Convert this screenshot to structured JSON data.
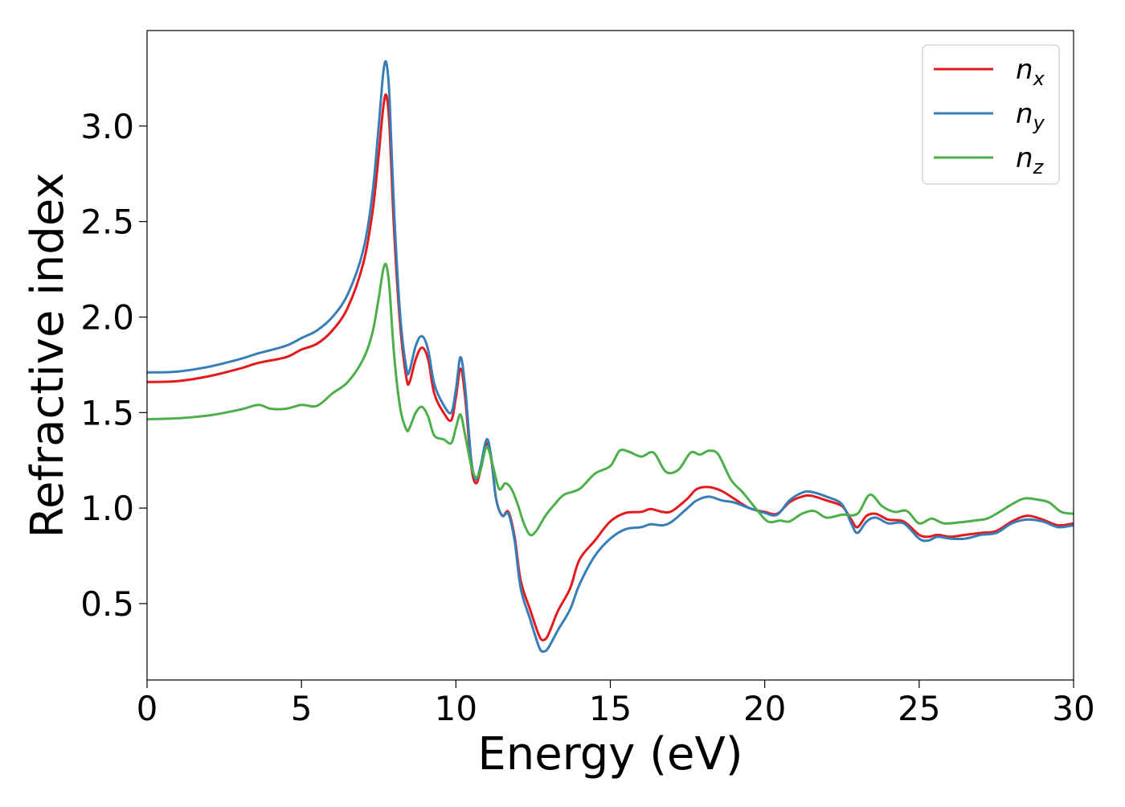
{
  "chart_data": {
    "type": "line",
    "title": "",
    "xlabel": "Energy (eV)",
    "ylabel": "Refractive index",
    "xlim": [
      0,
      30
    ],
    "ylim": [
      0.1,
      3.5
    ],
    "xticks": [
      0,
      5,
      10,
      15,
      20,
      25,
      30
    ],
    "yticks": [
      0.5,
      1.0,
      1.5,
      2.0,
      2.5,
      3.0
    ],
    "xtick_labels": [
      "0",
      "5",
      "10",
      "15",
      "20",
      "25",
      "30"
    ],
    "ytick_labels": [
      "0.5",
      "1.0",
      "1.5",
      "2.0",
      "2.5",
      "3.0"
    ],
    "grid": false,
    "legend": "top-right",
    "series": [
      {
        "name": "n_x",
        "base": "n",
        "sub": "x",
        "color": "#e41a1c",
        "points": [
          [
            0,
            1.66
          ],
          [
            1,
            1.665
          ],
          [
            2,
            1.69
          ],
          [
            3,
            1.73
          ],
          [
            3.6,
            1.76
          ],
          [
            4.5,
            1.79
          ],
          [
            5,
            1.83
          ],
          [
            5.5,
            1.86
          ],
          [
            6,
            1.93
          ],
          [
            6.5,
            2.05
          ],
          [
            7,
            2.28
          ],
          [
            7.3,
            2.55
          ],
          [
            7.5,
            2.85
          ],
          [
            7.65,
            3.1
          ],
          [
            7.75,
            3.16
          ],
          [
            7.85,
            3.0
          ],
          [
            8.0,
            2.45
          ],
          [
            8.2,
            1.95
          ],
          [
            8.4,
            1.68
          ],
          [
            8.5,
            1.66
          ],
          [
            8.7,
            1.78
          ],
          [
            8.9,
            1.84
          ],
          [
            9.1,
            1.78
          ],
          [
            9.3,
            1.6
          ],
          [
            9.6,
            1.5
          ],
          [
            9.85,
            1.46
          ],
          [
            10.0,
            1.58
          ],
          [
            10.15,
            1.73
          ],
          [
            10.3,
            1.58
          ],
          [
            10.5,
            1.22
          ],
          [
            10.65,
            1.13
          ],
          [
            10.8,
            1.2
          ],
          [
            11.0,
            1.34
          ],
          [
            11.15,
            1.25
          ],
          [
            11.3,
            1.05
          ],
          [
            11.5,
            0.96
          ],
          [
            11.7,
            0.98
          ],
          [
            11.9,
            0.85
          ],
          [
            12.1,
            0.62
          ],
          [
            12.4,
            0.47
          ],
          [
            12.7,
            0.33
          ],
          [
            12.85,
            0.31
          ],
          [
            13.0,
            0.34
          ],
          [
            13.3,
            0.46
          ],
          [
            13.7,
            0.58
          ],
          [
            14.0,
            0.73
          ],
          [
            14.5,
            0.83
          ],
          [
            15.0,
            0.93
          ],
          [
            15.5,
            0.975
          ],
          [
            16.0,
            0.98
          ],
          [
            16.3,
            0.995
          ],
          [
            16.7,
            0.98
          ],
          [
            17.0,
            0.985
          ],
          [
            17.5,
            1.05
          ],
          [
            17.8,
            1.1
          ],
          [
            18.2,
            1.11
          ],
          [
            18.6,
            1.09
          ],
          [
            19.0,
            1.05
          ],
          [
            19.5,
            1.0
          ],
          [
            20.0,
            0.98
          ],
          [
            20.4,
            0.97
          ],
          [
            20.8,
            1.03
          ],
          [
            21.2,
            1.06
          ],
          [
            21.5,
            1.065
          ],
          [
            22.0,
            1.04
          ],
          [
            22.5,
            1.01
          ],
          [
            22.8,
            0.94
          ],
          [
            23.0,
            0.9
          ],
          [
            23.3,
            0.96
          ],
          [
            23.6,
            0.97
          ],
          [
            24.0,
            0.94
          ],
          [
            24.5,
            0.93
          ],
          [
            25.0,
            0.86
          ],
          [
            25.3,
            0.85
          ],
          [
            25.6,
            0.86
          ],
          [
            26.0,
            0.85
          ],
          [
            26.5,
            0.86
          ],
          [
            27.0,
            0.87
          ],
          [
            27.5,
            0.88
          ],
          [
            28.0,
            0.93
          ],
          [
            28.5,
            0.96
          ],
          [
            29.0,
            0.94
          ],
          [
            29.5,
            0.91
          ],
          [
            30.0,
            0.92
          ]
        ]
      },
      {
        "name": "n_y",
        "base": "n",
        "sub": "y",
        "color": "#377eb8",
        "points": [
          [
            0,
            1.71
          ],
          [
            1,
            1.715
          ],
          [
            2,
            1.74
          ],
          [
            3,
            1.78
          ],
          [
            3.6,
            1.81
          ],
          [
            4.5,
            1.85
          ],
          [
            5,
            1.89
          ],
          [
            5.5,
            1.93
          ],
          [
            6,
            2.0
          ],
          [
            6.5,
            2.12
          ],
          [
            7,
            2.35
          ],
          [
            7.3,
            2.65
          ],
          [
            7.5,
            3.0
          ],
          [
            7.65,
            3.28
          ],
          [
            7.75,
            3.33
          ],
          [
            7.85,
            3.15
          ],
          [
            8.0,
            2.55
          ],
          [
            8.2,
            2.0
          ],
          [
            8.4,
            1.73
          ],
          [
            8.5,
            1.72
          ],
          [
            8.7,
            1.85
          ],
          [
            8.9,
            1.9
          ],
          [
            9.1,
            1.83
          ],
          [
            9.3,
            1.65
          ],
          [
            9.6,
            1.54
          ],
          [
            9.85,
            1.5
          ],
          [
            10.0,
            1.62
          ],
          [
            10.15,
            1.79
          ],
          [
            10.3,
            1.63
          ],
          [
            10.5,
            1.25
          ],
          [
            10.65,
            1.15
          ],
          [
            10.8,
            1.22
          ],
          [
            11.0,
            1.36
          ],
          [
            11.15,
            1.26
          ],
          [
            11.3,
            1.05
          ],
          [
            11.5,
            0.96
          ],
          [
            11.7,
            0.97
          ],
          [
            11.9,
            0.83
          ],
          [
            12.1,
            0.58
          ],
          [
            12.4,
            0.42
          ],
          [
            12.7,
            0.27
          ],
          [
            12.85,
            0.25
          ],
          [
            13.0,
            0.27
          ],
          [
            13.3,
            0.36
          ],
          [
            13.7,
            0.47
          ],
          [
            14.0,
            0.6
          ],
          [
            14.5,
            0.75
          ],
          [
            15.0,
            0.84
          ],
          [
            15.5,
            0.89
          ],
          [
            16.0,
            0.9
          ],
          [
            16.3,
            0.915
          ],
          [
            16.7,
            0.91
          ],
          [
            17.0,
            0.93
          ],
          [
            17.5,
            1.0
          ],
          [
            17.8,
            1.04
          ],
          [
            18.2,
            1.06
          ],
          [
            18.6,
            1.04
          ],
          [
            19.0,
            1.03
          ],
          [
            19.5,
            1.0
          ],
          [
            20.0,
            0.975
          ],
          [
            20.4,
            0.965
          ],
          [
            20.8,
            1.04
          ],
          [
            21.2,
            1.08
          ],
          [
            21.5,
            1.085
          ],
          [
            22.0,
            1.06
          ],
          [
            22.5,
            1.02
          ],
          [
            22.8,
            0.92
          ],
          [
            23.0,
            0.87
          ],
          [
            23.3,
            0.93
          ],
          [
            23.6,
            0.95
          ],
          [
            24.0,
            0.92
          ],
          [
            24.5,
            0.92
          ],
          [
            25.0,
            0.84
          ],
          [
            25.3,
            0.83
          ],
          [
            25.6,
            0.85
          ],
          [
            26.0,
            0.84
          ],
          [
            26.5,
            0.84
          ],
          [
            27.0,
            0.86
          ],
          [
            27.5,
            0.87
          ],
          [
            28.0,
            0.92
          ],
          [
            28.5,
            0.94
          ],
          [
            29.0,
            0.93
          ],
          [
            29.5,
            0.9
          ],
          [
            30.0,
            0.91
          ]
        ]
      },
      {
        "name": "n_z",
        "base": "n",
        "sub": "z",
        "color": "#4daf4a",
        "points": [
          [
            0,
            1.465
          ],
          [
            1,
            1.47
          ],
          [
            2,
            1.485
          ],
          [
            3,
            1.515
          ],
          [
            3.6,
            1.54
          ],
          [
            4.0,
            1.52
          ],
          [
            4.5,
            1.52
          ],
          [
            5.0,
            1.54
          ],
          [
            5.5,
            1.535
          ],
          [
            6,
            1.6
          ],
          [
            6.5,
            1.66
          ],
          [
            7,
            1.78
          ],
          [
            7.3,
            1.92
          ],
          [
            7.5,
            2.1
          ],
          [
            7.65,
            2.25
          ],
          [
            7.75,
            2.27
          ],
          [
            7.85,
            2.15
          ],
          [
            8.0,
            1.8
          ],
          [
            8.2,
            1.52
          ],
          [
            8.4,
            1.41
          ],
          [
            8.5,
            1.42
          ],
          [
            8.7,
            1.5
          ],
          [
            8.9,
            1.53
          ],
          [
            9.1,
            1.48
          ],
          [
            9.3,
            1.38
          ],
          [
            9.6,
            1.36
          ],
          [
            9.85,
            1.34
          ],
          [
            10.0,
            1.42
          ],
          [
            10.15,
            1.49
          ],
          [
            10.3,
            1.38
          ],
          [
            10.5,
            1.22
          ],
          [
            10.65,
            1.16
          ],
          [
            10.8,
            1.2
          ],
          [
            11.0,
            1.32
          ],
          [
            11.2,
            1.22
          ],
          [
            11.4,
            1.1
          ],
          [
            11.6,
            1.13
          ],
          [
            11.8,
            1.1
          ],
          [
            12.0,
            1.02
          ],
          [
            12.2,
            0.92
          ],
          [
            12.4,
            0.86
          ],
          [
            12.6,
            0.88
          ],
          [
            12.9,
            0.96
          ],
          [
            13.2,
            1.02
          ],
          [
            13.5,
            1.07
          ],
          [
            14.0,
            1.1
          ],
          [
            14.5,
            1.18
          ],
          [
            15.0,
            1.22
          ],
          [
            15.3,
            1.3
          ],
          [
            15.6,
            1.295
          ],
          [
            16.0,
            1.27
          ],
          [
            16.4,
            1.29
          ],
          [
            16.8,
            1.19
          ],
          [
            17.2,
            1.2
          ],
          [
            17.6,
            1.29
          ],
          [
            17.9,
            1.28
          ],
          [
            18.2,
            1.3
          ],
          [
            18.5,
            1.28
          ],
          [
            18.9,
            1.15
          ],
          [
            19.3,
            1.08
          ],
          [
            19.7,
            1.0
          ],
          [
            20.1,
            0.93
          ],
          [
            20.5,
            0.935
          ],
          [
            20.8,
            0.93
          ],
          [
            21.2,
            0.97
          ],
          [
            21.6,
            0.985
          ],
          [
            22.0,
            0.95
          ],
          [
            22.5,
            0.965
          ],
          [
            23.0,
            0.97
          ],
          [
            23.4,
            1.07
          ],
          [
            23.8,
            1.01
          ],
          [
            24.2,
            0.98
          ],
          [
            24.6,
            0.985
          ],
          [
            25.0,
            0.92
          ],
          [
            25.4,
            0.945
          ],
          [
            25.8,
            0.92
          ],
          [
            26.3,
            0.925
          ],
          [
            26.8,
            0.935
          ],
          [
            27.2,
            0.945
          ],
          [
            27.6,
            0.98
          ],
          [
            28.0,
            1.02
          ],
          [
            28.4,
            1.05
          ],
          [
            28.8,
            1.045
          ],
          [
            29.2,
            1.03
          ],
          [
            29.6,
            0.98
          ],
          [
            30.0,
            0.97
          ]
        ]
      }
    ]
  }
}
